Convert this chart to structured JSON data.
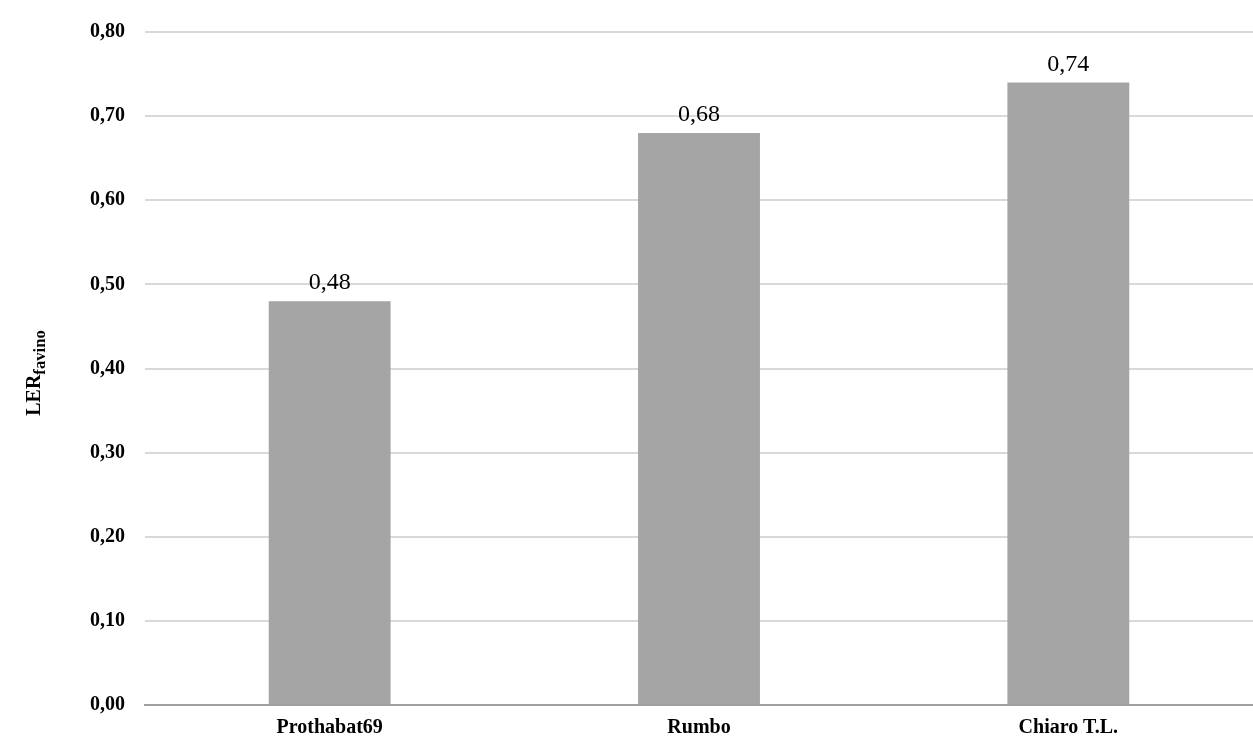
{
  "chart_data": {
    "type": "bar",
    "ylabel": "LER$_{favino}$",
    "categories": [
      "Prothabat69",
      "Rumbo",
      "Chiaro T.L."
    ],
    "values": [
      0.48,
      0.68,
      0.74
    ],
    "color": "#a5a5a5",
    "value_labels": [
      "0,48",
      "0,68",
      "0,74"
    ],
    "ylim": [
      0,
      0.8
    ],
    "yticks": [
      {
        "value": 0,
        "label": "0,00"
      },
      {
        "value": 0.1,
        "label": "0,10"
      },
      {
        "value": 0.2,
        "label": "0,20"
      },
      {
        "value": 0.3,
        "label": "0,30"
      },
      {
        "value": 0.4,
        "label": "0,40"
      },
      {
        "value": 0.5,
        "label": "0,50"
      },
      {
        "value": 0.6,
        "label": "0,60"
      },
      {
        "value": 0.7,
        "label": "0,70"
      },
      {
        "value": 0.8,
        "label": "0,80"
      }
    ],
    "grid": "y"
  }
}
